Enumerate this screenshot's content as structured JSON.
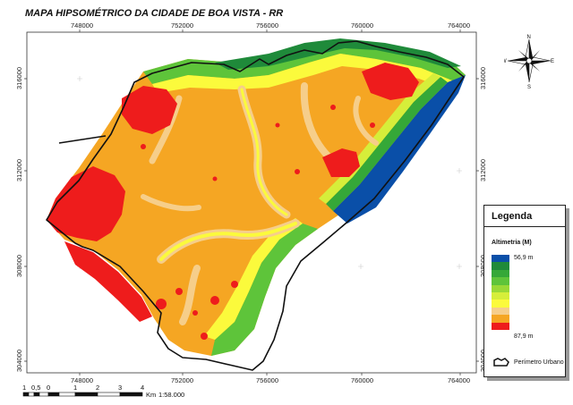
{
  "title": "MAPA HIPSOMÉTRICO DA CIDADE DE BOA VISTA - RR",
  "x_ticks": [
    "748000",
    "752000",
    "756000",
    "760000",
    "764000"
  ],
  "y_ticks": [
    "316000",
    "312000",
    "308000",
    "304000"
  ],
  "legend": {
    "title": "Legenda",
    "altimetry_title": "Altimetria (M)",
    "min_label": "56,9 m",
    "max_label": "87,9 m",
    "classes": [
      "#0a4fa8",
      "#1f8a3a",
      "#35a838",
      "#5ec43a",
      "#9ad936",
      "#d6ee3a",
      "#fbfa3c",
      "#f6ce8a",
      "#f5a623",
      "#ee1c1c"
    ],
    "perimeter_label": "Perímetro Urbano"
  },
  "scale": {
    "labels": [
      "1",
      "0,5",
      "0",
      "1",
      "2",
      "3",
      "4"
    ],
    "unit": "Km",
    "ratio": "1:58.000"
  },
  "compass": {
    "n": "N",
    "s": "S",
    "e": "E",
    "w": "W"
  }
}
